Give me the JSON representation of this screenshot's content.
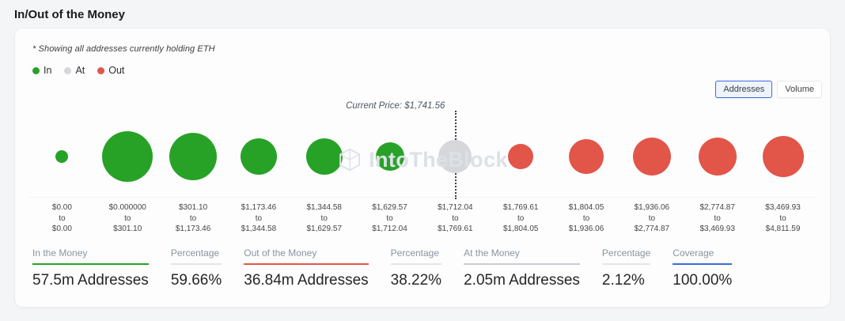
{
  "page": {
    "title": "In/Out of the Money"
  },
  "card": {
    "note": "* Showing all addresses currently holding ETH",
    "legend": [
      {
        "label": "In",
        "color": "#27A227"
      },
      {
        "label": "At",
        "color": "#D5D7DA"
      },
      {
        "label": "Out",
        "color": "#E25549"
      }
    ],
    "view_toggle": {
      "addresses_label": "Addresses",
      "volume_label": "Volume"
    },
    "watermark": "IntoTheBlock"
  },
  "chart_data": {
    "type": "bubble",
    "title": "In/Out of the Money",
    "subtitle": "* Showing all addresses currently holding ETH",
    "current_price_label": "Current Price: $1,741.56",
    "current_price": 1741.56,
    "current_price_marker_index": 6,
    "legend": [
      "In",
      "At",
      "Out"
    ],
    "legend_position": "top-left",
    "status_colors": {
      "in": "#27A227",
      "at": "#D5D7DA",
      "out": "#E25549"
    },
    "points": [
      {
        "from": "$0.00",
        "to": "$0.00",
        "status": "in",
        "size": 16
      },
      {
        "from": "$0.000000",
        "to": "$301.10",
        "status": "in",
        "size": 64
      },
      {
        "from": "$301.10",
        "to": "$1,173.46",
        "status": "in",
        "size": 60
      },
      {
        "from": "$1,173.46",
        "to": "$1,344.58",
        "status": "in",
        "size": 46
      },
      {
        "from": "$1,344.58",
        "to": "$1,629.57",
        "status": "in",
        "size": 46
      },
      {
        "from": "$1,629.57",
        "to": "$1,712.04",
        "status": "in",
        "size": 36
      },
      {
        "from": "$1,712.04",
        "to": "$1,769.61",
        "status": "at",
        "size": 42
      },
      {
        "from": "$1,769.61",
        "to": "$1,804.05",
        "status": "out",
        "size": 32
      },
      {
        "from": "$1,804.05",
        "to": "$1,936.06",
        "status": "out",
        "size": 44
      },
      {
        "from": "$1,936.06",
        "to": "$2,774.87",
        "status": "out",
        "size": 48
      },
      {
        "from": "$2,774.87",
        "to": "$3,469.93",
        "status": "out",
        "size": 48
      },
      {
        "from": "$3,469.93",
        "to": "$4,811.59",
        "status": "out",
        "size": 52
      }
    ],
    "summary": {
      "in_the_money": "57.5m Addresses",
      "in_percentage": "59.66%",
      "out_of_the_money": "36.84m Addresses",
      "out_percentage": "38.22%",
      "at_the_money": "2.05m Addresses",
      "at_percentage": "2.12%",
      "coverage": "100.00%"
    }
  },
  "summary_columns": [
    {
      "key": "in-the-money",
      "label": "In the Money",
      "value": "57.5m Addresses",
      "underline": "#27A227"
    },
    {
      "key": "in-percentage",
      "label": "Percentage",
      "value": "59.66%",
      "underline": "#E3E6EA"
    },
    {
      "key": "out-of-the-money",
      "label": "Out of the Money",
      "value": "36.84m Addresses",
      "underline": "#E25549"
    },
    {
      "key": "out-percentage",
      "label": "Percentage",
      "value": "38.22%",
      "underline": "#E3E6EA"
    },
    {
      "key": "at-the-money",
      "label": "At the Money",
      "value": "2.05m Addresses",
      "underline": "#C9CDD3"
    },
    {
      "key": "at-percentage",
      "label": "Percentage",
      "value": "2.12%",
      "underline": "#E3E6EA"
    },
    {
      "key": "coverage",
      "label": "Coverage",
      "value": "100.00%",
      "underline": "#3F6AD8"
    }
  ]
}
